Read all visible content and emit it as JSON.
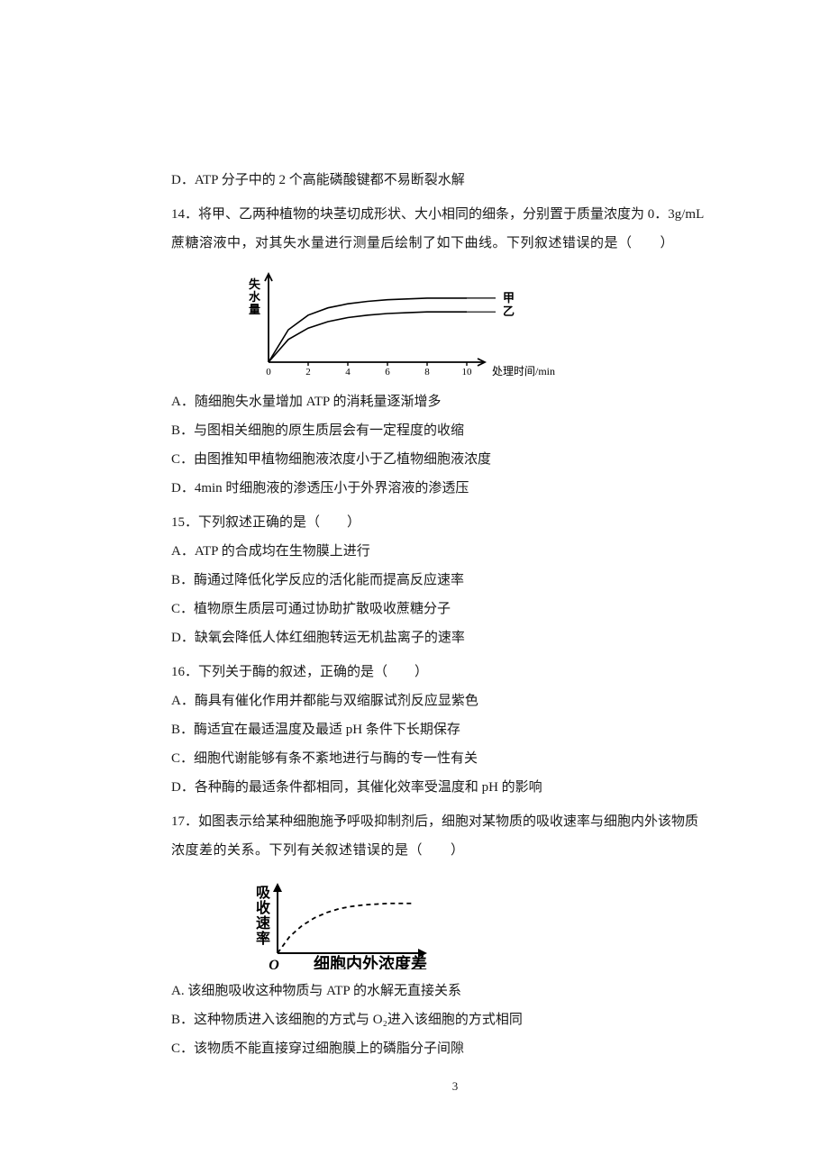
{
  "q13_D": "D．ATP 分子中的 2 个高能磷酸键都不易断裂水解",
  "q14": {
    "stem1": "14．将甲、乙两种植物的块茎切成形状、大小相同的细条，分别置于质量浓度为 0．3g/mL",
    "stem2": "蔗糖溶液中，对其失水量进行测量后绘制了如下曲线。下列叙述错误的是（　　）",
    "A": "A．随细胞失水量增加 ATP 的消耗量逐渐增多",
    "B": "B．与图相关细胞的原生质层会有一定程度的收缩",
    "C": "C．由图推知甲植物细胞液浓度小于乙植物细胞液浓度",
    "D": "D．4min 时细胞液的渗透压小于外界溶液的渗透压",
    "chart": {
      "y_label": "失水量",
      "x_label": "处理时间/min",
      "x_ticks": [
        "0",
        "2",
        "4",
        "6",
        "8",
        "10"
      ],
      "series": [
        {
          "name": "甲",
          "label": "甲",
          "points": [
            [
              0,
              0
            ],
            [
              1,
              40
            ],
            [
              2,
              58
            ],
            [
              3,
              67
            ],
            [
              4,
              72
            ],
            [
              5,
              75
            ],
            [
              6,
              77
            ],
            [
              7,
              78
            ],
            [
              8,
              79
            ],
            [
              9,
              79
            ],
            [
              10,
              79
            ]
          ]
        },
        {
          "name": "乙",
          "label": "乙",
          "points": [
            [
              0,
              0
            ],
            [
              1,
              28
            ],
            [
              2,
              42
            ],
            [
              3,
              50
            ],
            [
              4,
              55
            ],
            [
              5,
              58
            ],
            [
              6,
              60
            ],
            [
              7,
              61
            ],
            [
              8,
              62
            ],
            [
              9,
              62
            ],
            [
              10,
              62
            ]
          ]
        }
      ],
      "axis_color": "#000000",
      "line_color": "#000000",
      "line_width": 1.6,
      "font_size": 13
    }
  },
  "q15": {
    "stem": "15．下列叙述正确的是（　　）",
    "A": "A．ATP 的合成均在生物膜上进行",
    "B": "B．酶通过降低化学反应的活化能而提高反应速率",
    "C": "C．植物原生质层可通过协助扩散吸收蔗糖分子",
    "D": "D．缺氧会降低人体红细胞转运无机盐离子的速率"
  },
  "q16": {
    "stem": "16．下列关于酶的叙述，正确的是（　　）",
    "A": "A．酶具有催化作用并都能与双缩脲试剂反应显紫色",
    "B": "B．酶适宜在最适温度及最适 pH 条件下长期保存",
    "C": "C．细胞代谢能够有条不紊地进行与酶的专一性有关",
    "D": "D．各种酶的最适条件都相同，其催化效率受温度和 pH 的影响"
  },
  "q17": {
    "stem1": "17．如图表示给某种细胞施予呼吸抑制剂后，细胞对某物质的吸收速率与细胞内外该物质",
    "stem2": "浓度差的关系。下列有关叙述错误的是（　　）",
    "A": "A. 该细胞吸收这种物质与 ATP 的水解无直接关系",
    "B": "B．这种物质进入该细胞的方式与 O₂进入该细胞的方式相同",
    "C": "C．该物质不能直接穿过细胞膜上的磷脂分子间隙",
    "chart": {
      "y_label": "吸收速率",
      "x_label": "细胞内外浓度差",
      "origin": "O",
      "axis_color": "#000000",
      "line_color": "#000000",
      "dash": "5,4",
      "line_width": 1.8,
      "font_size": 16,
      "points": [
        [
          0,
          0
        ],
        [
          1,
          22
        ],
        [
          2,
          36
        ],
        [
          3,
          46
        ],
        [
          4,
          53
        ],
        [
          5,
          58
        ],
        [
          6,
          61
        ],
        [
          7,
          63
        ],
        [
          8,
          64
        ],
        [
          9,
          65
        ],
        [
          10,
          65
        ],
        [
          11,
          65
        ]
      ]
    }
  },
  "page_number": "3"
}
